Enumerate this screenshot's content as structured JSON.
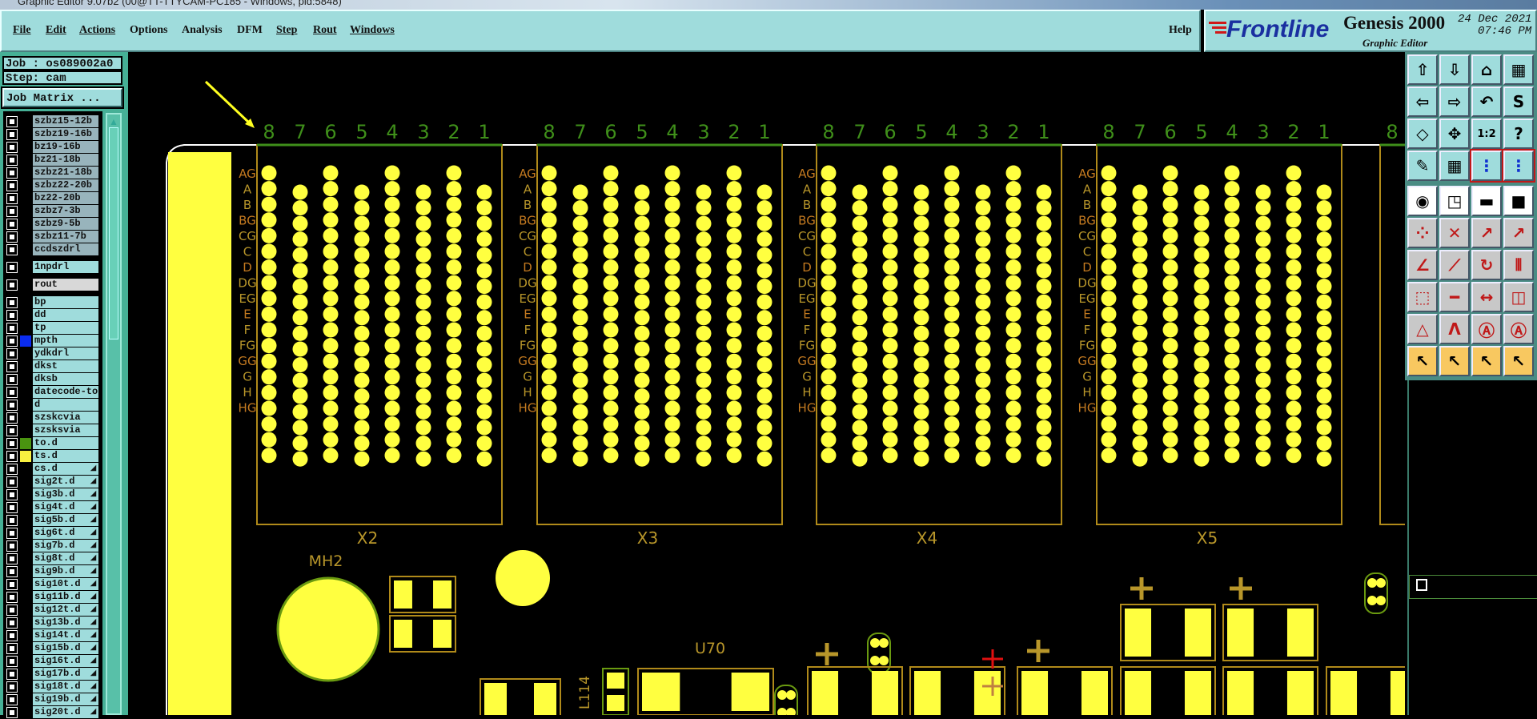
{
  "window": {
    "title": "Graphic Editor 9.07b2 (00@TT-TTYCAM-PC185 - Windows, pid:5848)"
  },
  "menu": {
    "items": [
      {
        "label": "File",
        "u": "F"
      },
      {
        "label": "Edit",
        "u": "E"
      },
      {
        "label": "Actions",
        "u": "A"
      },
      {
        "label": "Options"
      },
      {
        "label": "Analysis"
      },
      {
        "label": "DFM"
      },
      {
        "label": "Step",
        "u": "S"
      },
      {
        "label": "Rout",
        "u": "R"
      },
      {
        "label": "Windows",
        "u": "W"
      }
    ],
    "help": "Help"
  },
  "logo": {
    "brand": "Frontline",
    "product": "Genesis 2000",
    "subtitle": "Graphic Editor",
    "date": "24 Dec 2021",
    "time": "07:46 PM",
    "colors": {
      "brand": "#1a2fa0",
      "accent": "#d01818"
    }
  },
  "job": {
    "job": "Job : os089002a0",
    "step": "Step: cam",
    "matrix_button": "Job Matrix ..."
  },
  "layers": [
    {
      "name": "szbz15-12b",
      "style": "gray"
    },
    {
      "name": "szbz19-16b",
      "style": "gray"
    },
    {
      "name": "bz19-16b",
      "style": "gray"
    },
    {
      "name": "bz21-18b",
      "style": "gray"
    },
    {
      "name": "szbz21-18b",
      "style": "gray"
    },
    {
      "name": "szbz22-20b",
      "style": "gray"
    },
    {
      "name": "bz22-20b",
      "style": "gray"
    },
    {
      "name": "szbz7-3b",
      "style": "gray"
    },
    {
      "name": "szbz9-5b",
      "style": "gray"
    },
    {
      "name": "szbz11-7b",
      "style": "gray"
    },
    {
      "name": "ccdszdrl",
      "style": "gray"
    },
    {
      "name": "1npdrl",
      "group_gap": true
    },
    {
      "name": "rout",
      "style": "sel",
      "group_gap": true
    },
    {
      "name": "bp",
      "group_gap": true
    },
    {
      "name": "dd"
    },
    {
      "name": "tp"
    },
    {
      "name": "mpth",
      "color": "#0a2cf0"
    },
    {
      "name": "ydkdrl"
    },
    {
      "name": "dkst"
    },
    {
      "name": "dksb"
    },
    {
      "name": "datecode-to"
    },
    {
      "name": "d"
    },
    {
      "name": "szskcvia"
    },
    {
      "name": "szsksvia"
    },
    {
      "name": "to.d",
      "color": "#4a9410"
    },
    {
      "name": "ts.d",
      "color": "#f8f040"
    },
    {
      "name": "cs.d",
      "arrow": true
    },
    {
      "name": "sig2t.d",
      "arrow": true
    },
    {
      "name": "sig3b.d",
      "arrow": true
    },
    {
      "name": "sig4t.d",
      "arrow": true
    },
    {
      "name": "sig5b.d",
      "arrow": true
    },
    {
      "name": "sig6t.d",
      "arrow": true
    },
    {
      "name": "sig7b.d",
      "arrow": true
    },
    {
      "name": "sig8t.d",
      "arrow": true
    },
    {
      "name": "sig9b.d",
      "arrow": true
    },
    {
      "name": "sig10t.d",
      "arrow": true
    },
    {
      "name": "sig11b.d",
      "arrow": true
    },
    {
      "name": "sig12t.d",
      "arrow": true
    },
    {
      "name": "sig13b.d",
      "arrow": true
    },
    {
      "name": "sig14t.d",
      "arrow": true
    },
    {
      "name": "sig15b.d",
      "arrow": true
    },
    {
      "name": "sig16t.d",
      "arrow": true
    },
    {
      "name": "sig17b.d",
      "arrow": true
    },
    {
      "name": "sig18t.d",
      "arrow": true
    },
    {
      "name": "sig19b.d",
      "arrow": true
    },
    {
      "name": "sig20t.d",
      "arrow": true
    }
  ],
  "toolbar": [
    {
      "icon": "zoom-out-up-icon",
      "g": "⇧"
    },
    {
      "icon": "zoom-down-icon",
      "g": "⇩"
    },
    {
      "icon": "home-icon",
      "g": "⌂"
    },
    {
      "icon": "xy-grid-icon",
      "g": "▦"
    },
    {
      "icon": "pan-left-icon",
      "g": "⇦"
    },
    {
      "icon": "pan-right-icon",
      "g": "⇨"
    },
    {
      "icon": "undo-view-icon",
      "g": "↶"
    },
    {
      "icon": "snap-icon",
      "g": "S"
    },
    {
      "icon": "zoom-fit-icon",
      "g": "◇"
    },
    {
      "icon": "zoom-center-icon",
      "g": "✥"
    },
    {
      "icon": "scale-1-2-icon",
      "g": "1:2"
    },
    {
      "icon": "help-icon",
      "g": "?"
    },
    {
      "icon": "tools-palette-icon",
      "g": "✎"
    },
    {
      "icon": "grid-icon",
      "g": "▦"
    },
    {
      "icon": "netlist-icon-1",
      "g": "⋮",
      "red": true
    },
    {
      "icon": "netlist-icon-2",
      "g": "⋮",
      "red": true
    },
    {
      "icon": "pad-info-icon",
      "g": "◉",
      "white": true
    },
    {
      "icon": "feature-select-icon",
      "g": "◳",
      "white": true
    },
    {
      "icon": "ruler-icon",
      "g": "▬",
      "white": true
    },
    {
      "icon": "pad-outline-icon",
      "g": "■",
      "white": true
    },
    {
      "icon": "connect-icon",
      "g": "⁘"
    },
    {
      "icon": "delete-node-icon",
      "g": "✕"
    },
    {
      "icon": "move-point-icon",
      "g": "↗"
    },
    {
      "icon": "move-pad-icon",
      "g": "↗"
    },
    {
      "icon": "angle-line-icon",
      "g": "∠"
    },
    {
      "icon": "line-icon",
      "g": "⟋"
    },
    {
      "icon": "rotate-icon",
      "g": "↻"
    },
    {
      "icon": "mirror-icon",
      "g": "⫴"
    },
    {
      "icon": "move-square-icon",
      "g": "⬚"
    },
    {
      "icon": "segment-icon",
      "g": "━"
    },
    {
      "icon": "dimension-icon",
      "g": "↔"
    },
    {
      "icon": "overlap-icon",
      "g": "◫"
    },
    {
      "icon": "triangle-icon",
      "g": "△"
    },
    {
      "icon": "arch-icon-1",
      "g": "Λ"
    },
    {
      "icon": "arch-icon-2",
      "g": "Ⓐ"
    },
    {
      "icon": "arch-icon-3",
      "g": "Ⓐ"
    },
    {
      "icon": "pointer-icon",
      "g": "↖",
      "yellow": true
    },
    {
      "icon": "pointer-box-icon",
      "g": "↖",
      "yellow": true
    },
    {
      "icon": "pointer-poly-icon",
      "g": "↖",
      "yellow": true
    },
    {
      "icon": "route-pointer-icon",
      "g": "↖",
      "yellow": true
    }
  ],
  "pcb": {
    "connectors": [
      {
        "name": "X2"
      },
      {
        "name": "X3"
      },
      {
        "name": "X4"
      },
      {
        "name": "X5"
      }
    ],
    "column_labels": [
      "8",
      "7",
      "6",
      "5",
      "4",
      "3",
      "2",
      "1"
    ],
    "row_labels": [
      "AG",
      "A",
      "B",
      "BG",
      "CG",
      "C",
      "D",
      "DG",
      "EG",
      "E",
      "F",
      "FG",
      "GG",
      "G",
      "H",
      "HG"
    ],
    "components": {
      "mh2": "MH2",
      "u70": "U70",
      "l114": "L114"
    },
    "colors": {
      "pad": "#ffff40",
      "silk": "#b8962a",
      "column_label": "#3f8f1a",
      "outline": "#b08a1a"
    }
  }
}
